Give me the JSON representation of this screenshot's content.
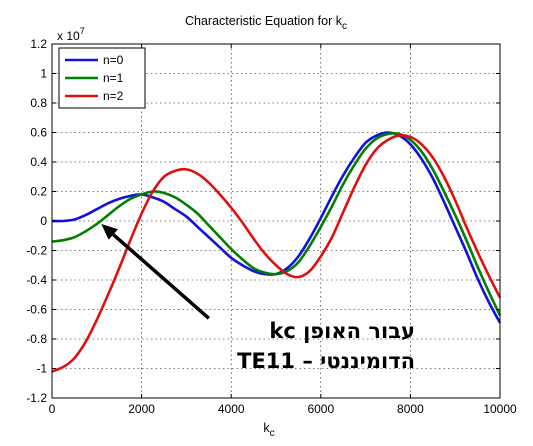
{
  "chart_data": {
    "type": "line",
    "title": "Characteristic Equation for k",
    "title_subscript": "c",
    "xlabel": "k",
    "xlabel_subscript": "c",
    "ylabel": "",
    "y_multiplier_base": "x 10",
    "y_multiplier_exp": "7",
    "xlim": [
      0,
      10000
    ],
    "ylim": [
      -1.2,
      1.2
    ],
    "x_ticks": [
      0,
      2000,
      4000,
      6000,
      8000,
      10000
    ],
    "x_tick_labels": [
      "0",
      "2000",
      "4000",
      "6000",
      "8000",
      "10000"
    ],
    "y_ticks": [
      -1.2,
      -1,
      -0.8,
      -0.6,
      -0.4,
      -0.2,
      0,
      0.2,
      0.4,
      0.6,
      0.8,
      1,
      1.2
    ],
    "y_tick_labels": [
      "-1.2",
      "-1",
      "-0.8",
      "-0.6",
      "-0.4",
      "-0.2",
      "0",
      "0.2",
      "0.4",
      "0.6",
      "0.8",
      "1",
      "1.2"
    ],
    "grid": true,
    "legend_position": "top-left",
    "series": [
      {
        "name": "n=0",
        "color": "#1010e0",
        "x": [
          0,
          250,
          500,
          750,
          1000,
          1250,
          1500,
          1750,
          2000,
          2250,
          2500,
          2750,
          3000,
          3250,
          3500,
          3750,
          4000,
          4250,
          4500,
          4750,
          5000,
          5250,
          5500,
          5750,
          6000,
          6250,
          6500,
          6750,
          7000,
          7250,
          7500,
          7750,
          8000,
          8250,
          8500,
          8750,
          9000,
          9250,
          9500,
          9750,
          10000
        ],
        "y": [
          0.0,
          0.0,
          0.01,
          0.04,
          0.08,
          0.12,
          0.15,
          0.17,
          0.18,
          0.16,
          0.13,
          0.08,
          0.03,
          -0.04,
          -0.11,
          -0.18,
          -0.25,
          -0.3,
          -0.34,
          -0.36,
          -0.36,
          -0.32,
          -0.24,
          -0.12,
          0.02,
          0.17,
          0.31,
          0.43,
          0.53,
          0.58,
          0.6,
          0.58,
          0.52,
          0.42,
          0.29,
          0.13,
          -0.04,
          -0.21,
          -0.39,
          -0.55,
          -0.69
        ]
      },
      {
        "name": "n=1",
        "color": "#007f00",
        "x": [
          0,
          250,
          500,
          750,
          1000,
          1250,
          1500,
          1750,
          2000,
          2250,
          2500,
          2750,
          3000,
          3250,
          3500,
          3750,
          4000,
          4250,
          4500,
          4750,
          5000,
          5250,
          5500,
          5750,
          6000,
          6250,
          6500,
          6750,
          7000,
          7250,
          7500,
          7750,
          8000,
          8250,
          8500,
          8750,
          9000,
          9250,
          9500,
          9750,
          10000
        ],
        "y": [
          -0.14,
          -0.13,
          -0.11,
          -0.07,
          -0.02,
          0.04,
          0.1,
          0.15,
          0.18,
          0.2,
          0.19,
          0.16,
          0.11,
          0.05,
          -0.03,
          -0.11,
          -0.19,
          -0.26,
          -0.32,
          -0.35,
          -0.36,
          -0.34,
          -0.28,
          -0.17,
          -0.04,
          0.1,
          0.25,
          0.38,
          0.49,
          0.56,
          0.59,
          0.59,
          0.55,
          0.47,
          0.35,
          0.2,
          0.04,
          -0.13,
          -0.31,
          -0.48,
          -0.64
        ]
      },
      {
        "name": "n=2",
        "color": "#e01010",
        "x": [
          0,
          250,
          500,
          750,
          1000,
          1250,
          1500,
          1750,
          2000,
          2250,
          2500,
          2750,
          3000,
          3250,
          3500,
          3750,
          4000,
          4250,
          4500,
          4750,
          5000,
          5250,
          5500,
          5750,
          6000,
          6250,
          6500,
          6750,
          7000,
          7250,
          7500,
          7750,
          8000,
          8250,
          8500,
          8750,
          9000,
          9250,
          9500,
          9750,
          10000
        ],
        "y": [
          -1.02,
          -0.99,
          -0.93,
          -0.82,
          -0.67,
          -0.5,
          -0.32,
          -0.13,
          0.05,
          0.2,
          0.3,
          0.34,
          0.35,
          0.32,
          0.26,
          0.18,
          0.09,
          -0.01,
          -0.12,
          -0.22,
          -0.3,
          -0.36,
          -0.38,
          -0.34,
          -0.24,
          -0.11,
          0.06,
          0.23,
          0.38,
          0.49,
          0.55,
          0.58,
          0.57,
          0.52,
          0.43,
          0.3,
          0.14,
          -0.04,
          -0.21,
          -0.37,
          -0.52
        ]
      }
    ],
    "annotation": {
      "line1": "kc עבור האופן",
      "line2": "TE11 – הדומיננטי",
      "arrow_target": {
        "x": 1100,
        "y": -0.02
      },
      "arrow_tail": {
        "x": 3500,
        "y": -0.66
      }
    }
  }
}
